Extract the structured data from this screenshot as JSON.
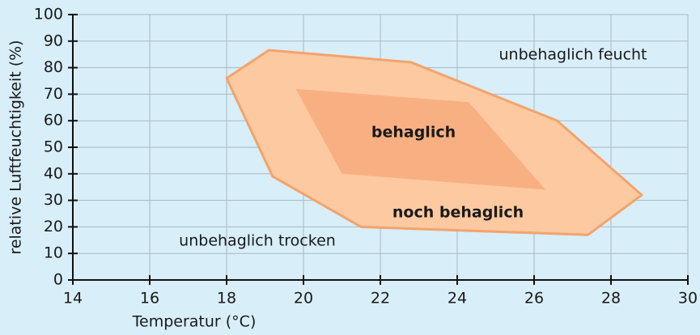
{
  "chart_data": {
    "type": "polygon",
    "x_label": "Temperatur (°C)",
    "y_label": "relative Luftfeuchtigkeit (%)",
    "xlim": [
      14,
      30
    ],
    "xticks": [
      14,
      16,
      18,
      20,
      22,
      24,
      26,
      28,
      30
    ],
    "ylim": [
      0,
      100
    ],
    "yticks": [
      0,
      10,
      20,
      30,
      40,
      50,
      60,
      70,
      80,
      90,
      100
    ],
    "grid": true,
    "series": [
      {
        "name": "noch behaglich",
        "color": "#fdc9a0",
        "edge": "#f2a46c",
        "x": [
          18,
          19.1,
          22.8,
          26.6,
          28.8,
          27.4,
          21.5,
          19.2
        ],
        "values": [
          76,
          86.6,
          82,
          60,
          32,
          17,
          20,
          39
        ]
      },
      {
        "name": "behaglich",
        "color": "#f8b083",
        "edge": "none",
        "x": [
          19.8,
          24.3,
          26.3,
          21
        ],
        "values": [
          72,
          67,
          34,
          40
        ]
      }
    ],
    "annotations": [
      "unbehaglich feucht",
      "unbehaglich trocken"
    ]
  }
}
